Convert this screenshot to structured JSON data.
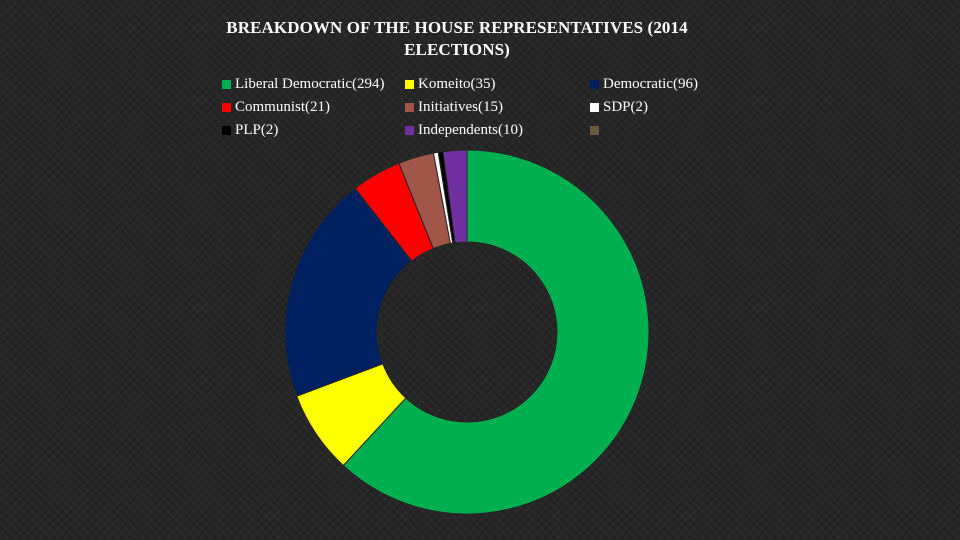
{
  "chart_data": {
    "type": "pie",
    "variant": "donut",
    "title": "BREAKDOWN OF THE HOUSE REPRESENTATIVES (2014 ELECTIONS)",
    "title_lines": [
      "BREAKDOWN OF THE HOUSE REPRESENTATIVES (2014",
      "ELECTIONS)"
    ],
    "legend_position": "top",
    "slices": [
      {
        "label": "Liberal Democratic(294)",
        "value": 294,
        "color": "#00B050"
      },
      {
        "label": "Komeito(35)",
        "value": 35,
        "color": "#FFFF00"
      },
      {
        "label": "Democratic(96)",
        "value": 96,
        "color": "#002060"
      },
      {
        "label": "Communist(21)",
        "value": 21,
        "color": "#FF0000"
      },
      {
        "label": "Initiatives(15)",
        "value": 15,
        "color": "#A0574A"
      },
      {
        "label": "SDP(2)",
        "value": 2,
        "color": "#FFFFFF"
      },
      {
        "label": "PLP(2)",
        "value": 2,
        "color": "#000000"
      },
      {
        "label": "Independents(10)",
        "value": 10,
        "color": "#7030A0"
      },
      {
        "label": "",
        "value": 0,
        "color": "#6B5A3E"
      }
    ]
  }
}
